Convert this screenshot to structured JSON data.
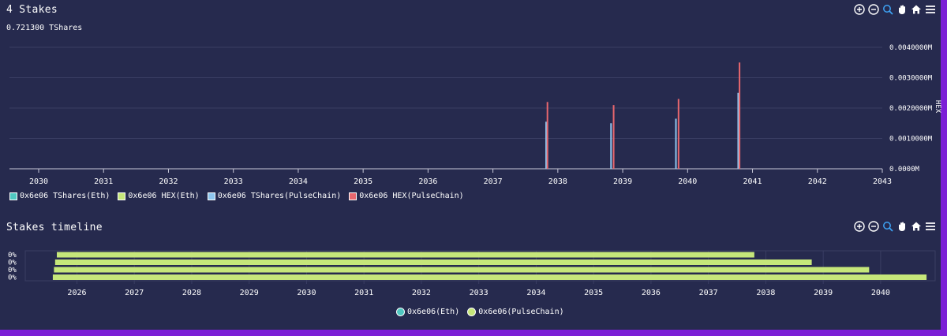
{
  "stakes_panel": {
    "title": "4 Stakes",
    "subtitle": "0.721300 TShares",
    "y_axis_label": "HEX",
    "toolbar": [
      "zoom-in-icon",
      "zoom-out-icon",
      "zoom-select-icon",
      "pan-hand-icon",
      "home-icon",
      "menu-icon"
    ],
    "legend": [
      {
        "label": "0x6e06 TShares(Eth)",
        "color": "#4fc7c0"
      },
      {
        "label": "0x6e06 HEX(Eth)",
        "color": "#c6e77a"
      },
      {
        "label": "0x6e06 TShares(PulseChain)",
        "color": "#8ec6ee"
      },
      {
        "label": "0x6e06 HEX(PulseChain)",
        "color": "#e8676e"
      }
    ]
  },
  "timeline_panel": {
    "title": "Stakes timeline",
    "toolbar": [
      "zoom-in-icon",
      "zoom-out-icon",
      "zoom-select-icon",
      "pan-hand-icon",
      "home-icon",
      "menu-icon"
    ],
    "legend": [
      {
        "label": "0x6e06(Eth)",
        "color": "#4fc7c0"
      },
      {
        "label": "0x6e06(PulseChain)",
        "color": "#c6e77a"
      }
    ]
  },
  "chart_data": [
    {
      "type": "bar",
      "x_ticks": [
        "2030",
        "2031",
        "2032",
        "2033",
        "2034",
        "2035",
        "2036",
        "2037",
        "2038",
        "2039",
        "2040",
        "2041",
        "2042",
        "2043"
      ],
      "xlim": [
        2029.55,
        2043.0
      ],
      "ylabel": "HEX",
      "y_ticks": [
        "0.0000M",
        "0.0010000M",
        "0.0020000M",
        "0.0030000M",
        "0.0040000M"
      ],
      "ylim": [
        0,
        0.004
      ],
      "grid": true,
      "legend_position": "bottom-left",
      "series": [
        {
          "name": "0x6e06 TShares(PulseChain)",
          "color": "#8ec6ee",
          "points": [
            {
              "x": 2037.82,
              "y": 0.00155
            },
            {
              "x": 2038.82,
              "y": 0.0015
            },
            {
              "x": 2039.82,
              "y": 0.00165
            },
            {
              "x": 2040.78,
              "y": 0.0025
            }
          ]
        },
        {
          "name": "0x6e06 HEX(PulseChain)",
          "color": "#e8676e",
          "points": [
            {
              "x": 2037.84,
              "y": 0.0022
            },
            {
              "x": 2038.86,
              "y": 0.0021
            },
            {
              "x": 2039.86,
              "y": 0.0023
            },
            {
              "x": 2040.8,
              "y": 0.0035
            }
          ]
        }
      ]
    },
    {
      "type": "bar",
      "orientation": "horizontal",
      "x_ticks": [
        "2026",
        "2027",
        "2028",
        "2029",
        "2030",
        "2031",
        "2032",
        "2033",
        "2034",
        "2035",
        "2036",
        "2037",
        "2038",
        "2039",
        "2040"
      ],
      "xlim": [
        2025.1,
        2040.95
      ],
      "categories": [
        "0%",
        "0%",
        "0%",
        "0%"
      ],
      "series": [
        {
          "name": "0x6e06(PulseChain)",
          "color": "#c6e77a",
          "ranges": [
            [
              2025.65,
              2037.8
            ],
            [
              2025.62,
              2038.8
            ],
            [
              2025.6,
              2039.8
            ],
            [
              2025.58,
              2040.8
            ]
          ]
        }
      ]
    }
  ]
}
